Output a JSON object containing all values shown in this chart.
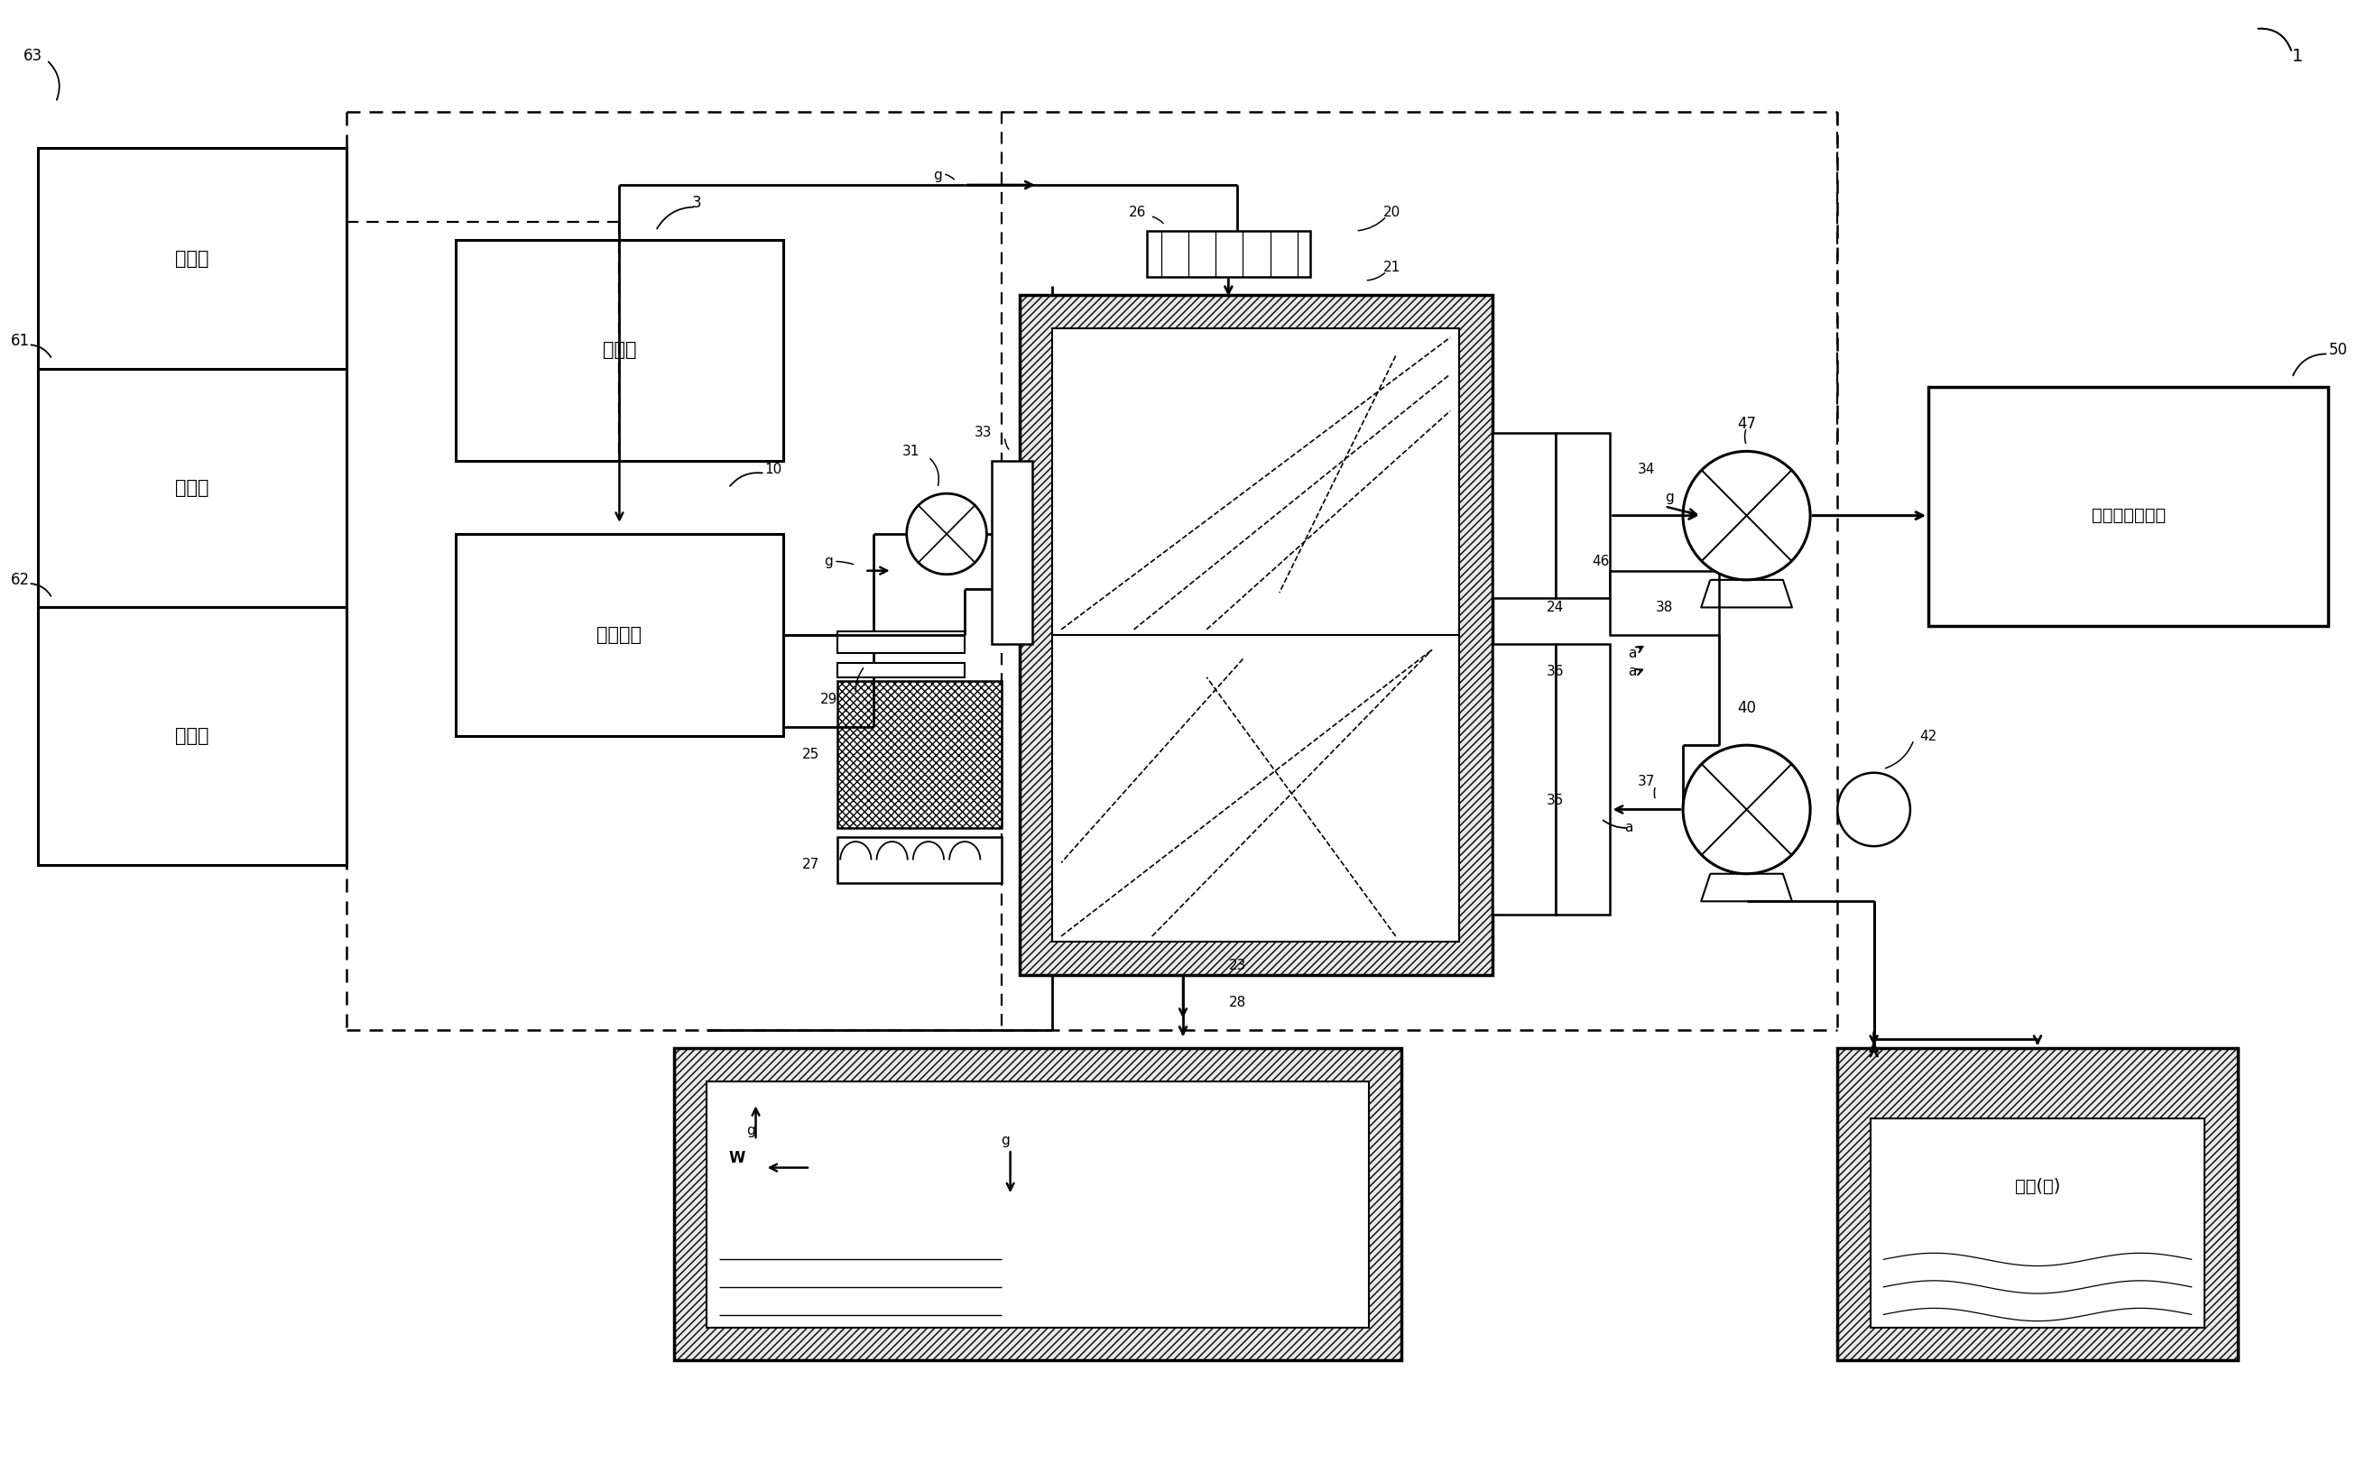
{
  "bg": "#ffffff",
  "fw": 26.22,
  "fh": 16.32,
  "dpi": 100,
  "text": {
    "tongxin": "通信部",
    "kongzhi": "控制部",
    "cunchu": "存储部",
    "fadongji": "发动机",
    "yuchuli": "预处理部",
    "ercyanhua": "二氧化碳回收部",
    "haishui": "海水(海)"
  },
  "nums": [
    "1",
    "3",
    "10",
    "20",
    "21",
    "23",
    "24",
    "25",
    "26",
    "27",
    "28",
    "29",
    "31",
    "33",
    "34",
    "35",
    "36",
    "37",
    "38",
    "40",
    "42",
    "46",
    "47",
    "50",
    "61",
    "62",
    "63",
    "g",
    "a",
    "W"
  ]
}
